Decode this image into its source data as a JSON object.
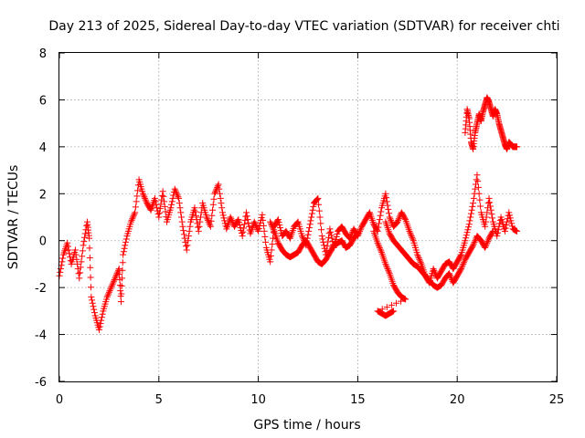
{
  "chart_data": {
    "type": "scatter",
    "title": "Day 213 of 2025, Sidereal Day-to-day VTEC variation (SDTVAR) for receiver chti",
    "xlabel": "GPS time / hours",
    "ylabel": "SDTVAR / TECUs",
    "xlim": [
      0,
      25
    ],
    "ylim": [
      -6,
      8
    ],
    "xticks": [
      0,
      5,
      10,
      15,
      20,
      25
    ],
    "yticks": [
      -6,
      -4,
      -2,
      0,
      2,
      4,
      6,
      8
    ],
    "grid": true,
    "marker": "+",
    "color": "#ff0000",
    "series": [
      {
        "name": "trace-main",
        "points": [
          [
            0,
            -1.5
          ],
          [
            0.2,
            -0.6
          ],
          [
            0.4,
            -0.1
          ],
          [
            0.6,
            -1.0
          ],
          [
            0.8,
            -0.4
          ],
          [
            1.0,
            -1.6
          ],
          [
            1.2,
            -0.2
          ],
          [
            1.4,
            0.8
          ],
          [
            1.5,
            0.1
          ],
          [
            1.6,
            -2.4
          ],
          [
            1.8,
            -3.2
          ],
          [
            2.0,
            -3.8
          ],
          [
            2.2,
            -3.0
          ],
          [
            2.4,
            -2.4
          ],
          [
            2.6,
            -2.0
          ],
          [
            2.8,
            -1.6
          ],
          [
            3.0,
            -1.2
          ],
          [
            3.1,
            -2.6
          ],
          [
            3.2,
            -0.6
          ],
          [
            3.4,
            0.2
          ],
          [
            3.6,
            0.8
          ],
          [
            3.8,
            1.2
          ],
          [
            4.0,
            2.6
          ],
          [
            4.2,
            2.0
          ],
          [
            4.4,
            1.6
          ],
          [
            4.6,
            1.3
          ],
          [
            4.8,
            1.8
          ],
          [
            5.0,
            1.0
          ],
          [
            5.2,
            2.1
          ],
          [
            5.4,
            0.8
          ],
          [
            5.6,
            1.4
          ],
          [
            5.8,
            2.2
          ],
          [
            6.0,
            1.8
          ],
          [
            6.2,
            0.6
          ],
          [
            6.4,
            -0.4
          ],
          [
            6.6,
            0.8
          ],
          [
            6.8,
            1.4
          ],
          [
            7.0,
            0.4
          ],
          [
            7.2,
            1.6
          ],
          [
            7.4,
            1.0
          ],
          [
            7.6,
            0.6
          ],
          [
            7.8,
            2.0
          ],
          [
            8.0,
            2.4
          ],
          [
            8.2,
            1.2
          ],
          [
            8.4,
            0.5
          ],
          [
            8.6,
            1.0
          ],
          [
            8.8,
            0.6
          ],
          [
            9.0,
            0.9
          ],
          [
            9.2,
            0.2
          ],
          [
            9.4,
            1.2
          ],
          [
            9.6,
            0.3
          ],
          [
            9.8,
            0.8
          ],
          [
            10.0,
            0.4
          ],
          [
            10.2,
            1.1
          ],
          [
            10.4,
            -0.3
          ],
          [
            10.6,
            -0.9
          ],
          [
            10.8,
            0.6
          ],
          [
            11.0,
            0.9
          ],
          [
            11.2,
            0.2
          ],
          [
            11.4,
            0.4
          ],
          [
            11.6,
            0.1
          ],
          [
            11.8,
            0.6
          ],
          [
            12.0,
            0.8
          ],
          [
            12.2,
            0.2
          ],
          [
            12.4,
            -0.2
          ],
          [
            12.6,
            0.7
          ],
          [
            12.8,
            1.6
          ],
          [
            13.0,
            1.8
          ],
          [
            13.2,
            0.2
          ],
          [
            13.4,
            -0.6
          ],
          [
            13.6,
            0.5
          ],
          [
            13.8,
            -0.3
          ],
          [
            14.0,
            0.4
          ],
          [
            14.2,
            0.6
          ],
          [
            14.4,
            0.3
          ],
          [
            14.6,
            0.1
          ],
          [
            14.8,
            0.5
          ],
          [
            15.0,
            0.2
          ],
          [
            15.2,
            0.6
          ],
          [
            15.4,
            0.9
          ],
          [
            15.6,
            1.2
          ],
          [
            15.8,
            0.7
          ],
          [
            16.0,
            0.4
          ],
          [
            16.2,
            1.4
          ],
          [
            16.4,
            2.0
          ],
          [
            16.6,
            1.0
          ],
          [
            16.8,
            0.6
          ],
          [
            17.0,
            0.8
          ],
          [
            17.2,
            1.2
          ],
          [
            17.4,
            0.9
          ],
          [
            17.6,
            0.4
          ],
          [
            17.8,
            0.0
          ],
          [
            18.0,
            -0.6
          ],
          [
            18.2,
            -1.0
          ],
          [
            18.4,
            -1.5
          ],
          [
            18.6,
            -1.8
          ],
          [
            18.8,
            -1.2
          ],
          [
            19.0,
            -1.6
          ],
          [
            19.2,
            -1.3
          ],
          [
            19.4,
            -1.0
          ],
          [
            19.6,
            -0.9
          ],
          [
            19.8,
            -1.2
          ],
          [
            20.0,
            -0.9
          ],
          [
            20.2,
            -0.6
          ],
          [
            20.4,
            0.0
          ],
          [
            20.6,
            0.7
          ],
          [
            20.8,
            1.6
          ],
          [
            21.0,
            2.8
          ],
          [
            21.2,
            1.2
          ],
          [
            21.4,
            0.6
          ],
          [
            21.6,
            1.8
          ],
          [
            21.8,
            0.8
          ],
          [
            22.0,
            0.2
          ],
          [
            22.2,
            1.0
          ],
          [
            22.4,
            0.4
          ],
          [
            22.6,
            1.2
          ],
          [
            22.8,
            0.5
          ],
          [
            23.0,
            0.4
          ]
        ]
      },
      {
        "name": "trace-lower-branch",
        "points": [
          [
            15.8,
            0.4
          ],
          [
            16.0,
            -0.1
          ],
          [
            16.2,
            -0.5
          ],
          [
            16.4,
            -1.0
          ],
          [
            16.6,
            -1.4
          ],
          [
            16.8,
            -1.9
          ],
          [
            17.0,
            -2.2
          ],
          [
            17.2,
            -2.4
          ],
          [
            17.4,
            -2.5
          ],
          [
            16.0,
            -3.0
          ],
          [
            16.2,
            -3.1
          ],
          [
            16.4,
            -3.2
          ],
          [
            16.6,
            -3.1
          ],
          [
            16.8,
            -3.0
          ]
        ]
      },
      {
        "name": "trace-crossing",
        "points": [
          [
            10.6,
            0.8
          ],
          [
            10.8,
            0.4
          ],
          [
            11.0,
            -0.1
          ],
          [
            11.2,
            -0.4
          ],
          [
            11.4,
            -0.6
          ],
          [
            11.6,
            -0.7
          ],
          [
            11.8,
            -0.6
          ],
          [
            12.0,
            -0.5
          ],
          [
            12.2,
            -0.2
          ],
          [
            12.4,
            0.0
          ],
          [
            12.6,
            -0.3
          ],
          [
            12.8,
            -0.6
          ],
          [
            13.0,
            -0.9
          ],
          [
            13.2,
            -1.0
          ],
          [
            13.4,
            -0.8
          ],
          [
            13.6,
            -0.5
          ],
          [
            13.8,
            -0.2
          ],
          [
            14.0,
            -0.1
          ],
          [
            14.2,
            0.0
          ],
          [
            14.4,
            -0.3
          ],
          [
            14.6,
            -0.2
          ],
          [
            14.8,
            0.1
          ],
          [
            15.0,
            0.3
          ]
        ]
      },
      {
        "name": "trace-late-arc",
        "points": [
          [
            16.4,
            0.8
          ],
          [
            16.6,
            0.3
          ],
          [
            16.8,
            0.0
          ],
          [
            17.0,
            -0.2
          ],
          [
            17.2,
            -0.4
          ],
          [
            17.4,
            -0.6
          ],
          [
            17.6,
            -0.8
          ],
          [
            17.8,
            -1.0
          ],
          [
            18.0,
            -1.1
          ],
          [
            18.2,
            -1.3
          ],
          [
            18.4,
            -1.5
          ],
          [
            18.6,
            -1.7
          ],
          [
            18.8,
            -1.9
          ],
          [
            19.0,
            -2.0
          ],
          [
            19.2,
            -1.9
          ],
          [
            19.4,
            -1.6
          ],
          [
            19.6,
            -1.4
          ],
          [
            19.8,
            -1.8
          ],
          [
            20.0,
            -1.5
          ],
          [
            20.2,
            -1.2
          ],
          [
            20.4,
            -0.8
          ],
          [
            20.6,
            -0.5
          ],
          [
            20.8,
            -0.2
          ],
          [
            21.0,
            0.2
          ],
          [
            21.2,
            0.0
          ],
          [
            21.4,
            -0.3
          ],
          [
            21.6,
            0.1
          ],
          [
            21.8,
            0.4
          ]
        ]
      },
      {
        "name": "trace-upper",
        "points": [
          [
            20.4,
            4.6
          ],
          [
            20.5,
            5.6
          ],
          [
            20.6,
            5.2
          ],
          [
            20.7,
            4.2
          ],
          [
            20.8,
            3.9
          ],
          [
            20.9,
            4.6
          ],
          [
            21.0,
            5.0
          ],
          [
            21.1,
            5.4
          ],
          [
            21.2,
            5.1
          ],
          [
            21.3,
            5.5
          ],
          [
            21.4,
            5.8
          ],
          [
            21.5,
            6.1
          ],
          [
            21.6,
            5.9
          ],
          [
            21.7,
            5.6
          ],
          [
            21.8,
            5.3
          ],
          [
            21.9,
            5.6
          ],
          [
            22.0,
            5.4
          ],
          [
            22.1,
            5.0
          ],
          [
            22.2,
            4.7
          ],
          [
            22.3,
            4.4
          ],
          [
            22.4,
            4.1
          ],
          [
            22.5,
            3.9
          ],
          [
            22.6,
            4.2
          ],
          [
            22.7,
            4.1
          ],
          [
            22.8,
            4.0
          ],
          [
            22.9,
            4.0
          ],
          [
            23.0,
            4.0
          ]
        ]
      }
    ]
  }
}
